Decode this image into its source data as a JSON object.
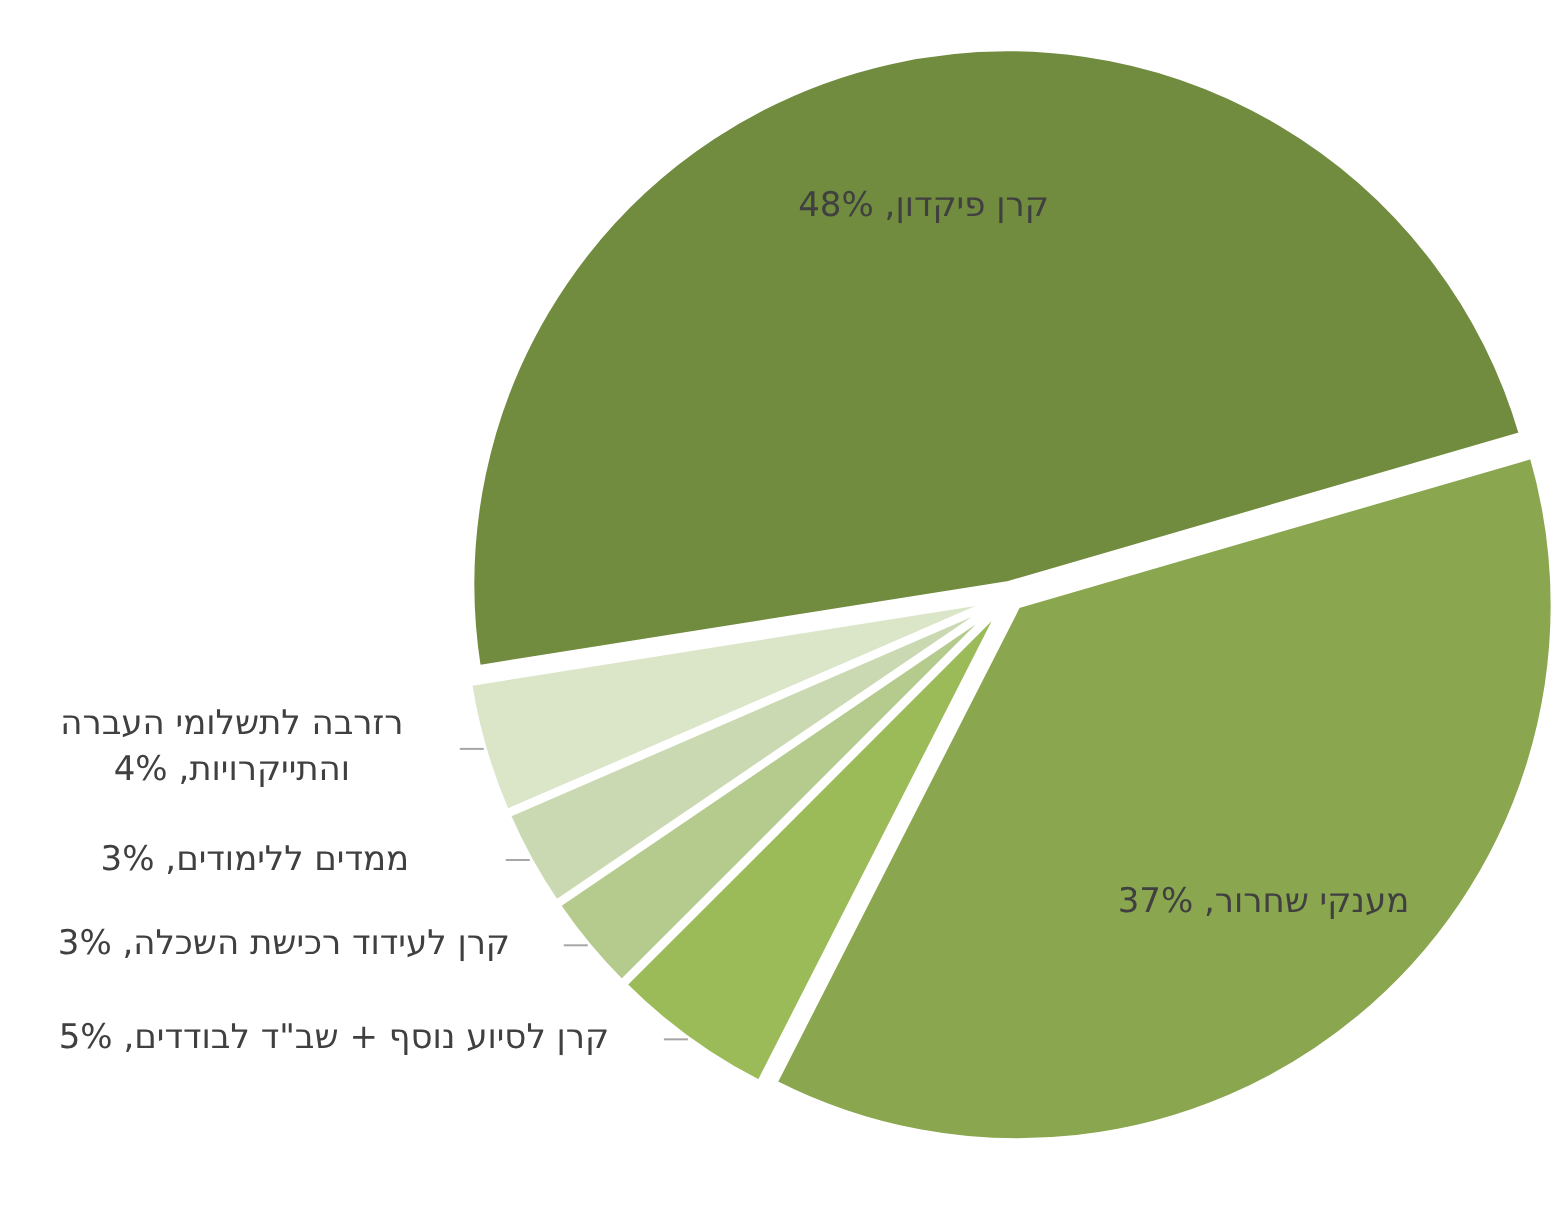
{
  "chart_data": {
    "type": "pie",
    "categories": [
      "קרן פיקדון",
      "מענקי שחרור",
      "קרן לסיוע נוסף + שב\"ד לבודדים",
      "קרן לעידוד רכישת השכלה",
      "ממדים ללימודים",
      "רזרבה לתשלומי העברה והתייקרויות"
    ],
    "values": [
      48,
      37,
      5,
      3,
      3,
      4
    ],
    "value_labels": [
      "48%",
      "37%",
      "5%",
      "3%",
      "3%",
      "4%"
    ],
    "colors": [
      "#718b3f",
      "#8aa64f",
      "#9bbb59",
      "#b5cb8e",
      "#cad9b1",
      "#dbe5c8"
    ]
  }
}
